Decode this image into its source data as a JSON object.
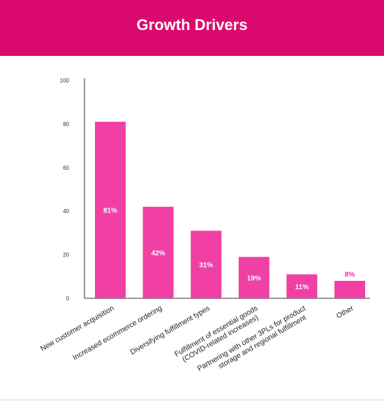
{
  "header": {
    "title": "Growth Drivers"
  },
  "colors": {
    "header_bg": "#db0a6e",
    "bar": "#f03fa5",
    "label_inside": "#ffffff",
    "label_outside": "#e8339a",
    "axis": "#333333"
  },
  "chart_data": {
    "type": "bar",
    "title": "Growth Drivers",
    "xlabel": "",
    "ylabel": "",
    "ylim": [
      0,
      100
    ],
    "yticks": [
      "0",
      "20",
      "40",
      "60",
      "80",
      "100"
    ],
    "grid": false,
    "categories": [
      "New customer acquisition",
      "Increased ecommerce ordering",
      "Diversifying fulfillment types",
      "Fulfillment of essential goods\n(COVID-related increases)",
      "Partnering with other 3PLs for product\nstorage and regional fulfillment",
      "Other"
    ],
    "values": [
      81,
      42,
      31,
      19,
      11,
      8
    ],
    "data_labels": [
      "81%",
      "42%",
      "31%",
      "19%",
      "11%",
      "8%"
    ]
  }
}
